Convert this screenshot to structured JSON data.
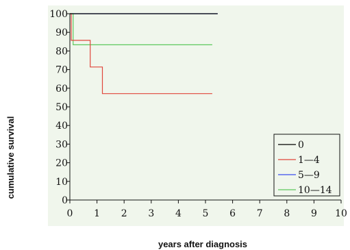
{
  "chart_data": {
    "type": "line",
    "xlabel": "years after diagnosis",
    "ylabel": "cumulative survival",
    "xlim": [
      0,
      10
    ],
    "ylim": [
      0,
      100
    ],
    "x_ticks": [
      "0",
      "1",
      "2",
      "3",
      "4",
      "5",
      "6",
      "7",
      "8",
      "9",
      "10"
    ],
    "y_ticks": [
      "0",
      "10",
      "20",
      "30",
      "40",
      "50",
      "60",
      "70",
      "80",
      "90",
      "100"
    ],
    "grid": false,
    "legend_position": "bottom-right",
    "plot_background": "#f0f6ec",
    "series": [
      {
        "name": "0",
        "color": "#000000",
        "x": [
          0,
          5.45
        ],
        "y": [
          100,
          100
        ]
      },
      {
        "name": "1—4",
        "color": "#e0453a",
        "x": [
          0,
          0.05,
          0.05,
          0.75,
          0.75,
          1.2,
          1.2,
          5.25
        ],
        "y": [
          100,
          100,
          85.7,
          85.7,
          71.4,
          71.4,
          57.1,
          57.1
        ]
      },
      {
        "name": "5—9",
        "color": "#3a4cf0",
        "x": [
          0,
          5.45
        ],
        "y": [
          100,
          100
        ]
      },
      {
        "name": "10—14",
        "color": "#5cc85c",
        "x": [
          0,
          0.12,
          0.12,
          5.25
        ],
        "y": [
          100,
          100,
          83.3,
          83.3
        ]
      }
    ]
  }
}
